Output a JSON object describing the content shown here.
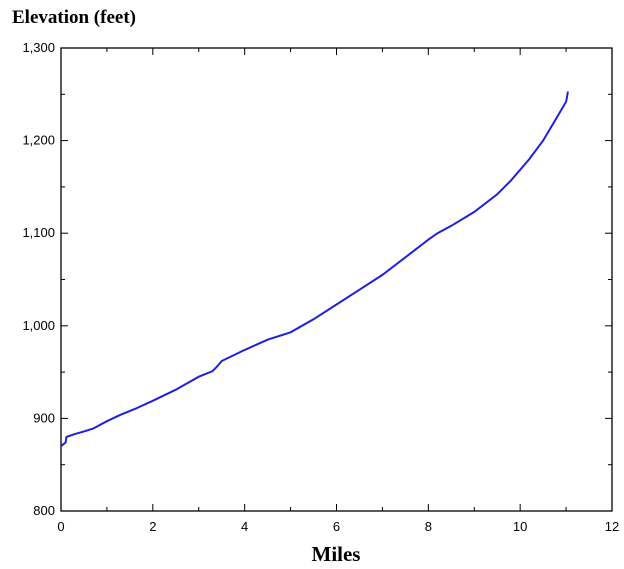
{
  "chart_data": {
    "type": "line",
    "title": "",
    "xlabel": "Miles",
    "ylabel": "Elevation (feet)",
    "xlim": [
      0,
      12
    ],
    "ylim": [
      800,
      1300
    ],
    "x_ticks": [
      0,
      2,
      4,
      6,
      8,
      10,
      12
    ],
    "x_tick_labels": [
      "0",
      "2",
      "4",
      "6",
      "8",
      "10",
      "12"
    ],
    "y_ticks": [
      800,
      900,
      1000,
      1100,
      1200,
      1300
    ],
    "y_tick_labels": [
      "800",
      "900",
      "1,000",
      "1,100",
      "1,200",
      "1,300"
    ],
    "grid": false,
    "line_color": "#1f1fe0",
    "series": [
      {
        "x": [
          0,
          0.05,
          0.1,
          0.12,
          0.3,
          0.5,
          0.7,
          1.0,
          1.3,
          1.6,
          2.0,
          2.5,
          3.0,
          3.3,
          3.4,
          3.5,
          4.0,
          4.5,
          5.0,
          5.5,
          6.0,
          6.5,
          7.0,
          7.5,
          8.0,
          8.2,
          8.5,
          9.0,
          9.5,
          9.8,
          10.2,
          10.5,
          10.8,
          11.0,
          11.02,
          11.04
        ],
        "y": [
          870,
          872,
          874,
          880,
          883,
          886,
          889,
          897,
          904,
          910,
          919,
          931,
          945,
          951,
          956,
          962,
          974,
          985,
          993,
          1007,
          1023,
          1039,
          1055,
          1074,
          1093,
          1100,
          1108,
          1123,
          1142,
          1157,
          1180,
          1200,
          1225,
          1242,
          1247,
          1253
        ]
      }
    ]
  }
}
